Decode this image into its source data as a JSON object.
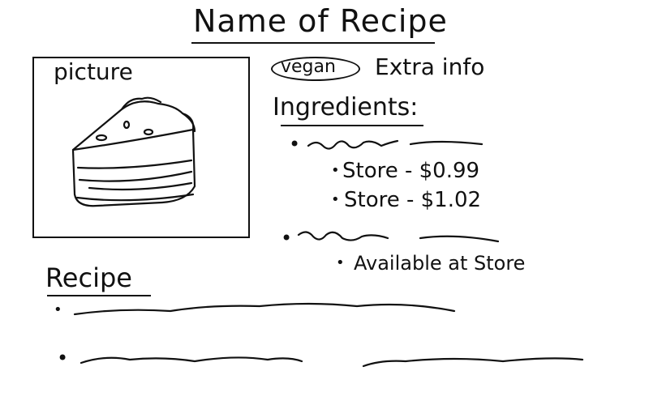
{
  "title": "Name of Recipe",
  "picture": {
    "label": "picture",
    "image": "cake-slice-sketch"
  },
  "tags": {
    "diet": "vegan",
    "extra_info": "Extra info"
  },
  "ingredients": {
    "heading": "Ingredients:",
    "items": [
      {
        "stores": [
          "Store - $0.99",
          "Store - $1.02"
        ]
      },
      {
        "availability": "Available at Store"
      }
    ]
  },
  "recipe": {
    "heading": "Recipe"
  }
}
